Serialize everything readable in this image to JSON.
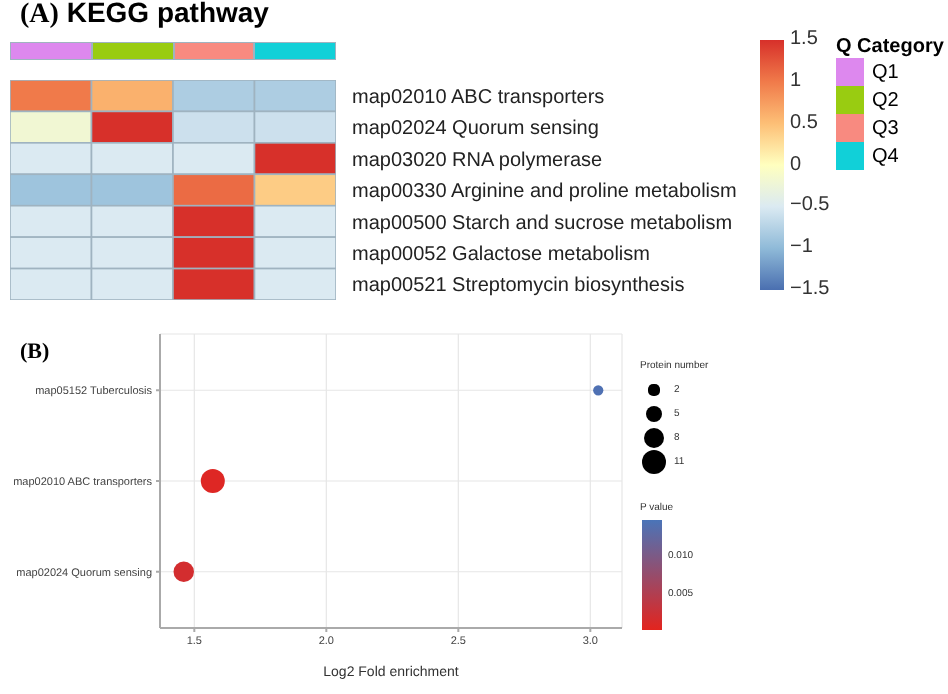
{
  "chart_data": [
    {
      "type": "heatmap",
      "title": "KEGG pathway",
      "annotations": [
        "(A)",
        "Q1",
        "Q2",
        "Q3",
        "Q4"
      ],
      "categories": [
        null,
        null,
        null,
        null
      ],
      "legend_title": "Q Category",
      "colors": [
        "#dd88ee",
        "#99cc11",
        "#f88a80",
        "#11d0d8"
      ],
      "y_categories": [
        "map02010 ABC transporters",
        "map02024 Quorum sensing",
        "map03020 RNA polymerase",
        "map00330 Arginine and proline metabolism",
        "map00500 Starch and sucrose metabolism",
        "map00052 Galactose metabolism",
        "map00521 Streptomycin biosynthesis"
      ],
      "cells": [
        [
          1.0,
          0.6,
          -0.8,
          -0.8
        ],
        [
          -0.2,
          1.5,
          -0.6,
          -0.6
        ],
        [
          -0.5,
          -0.5,
          -0.5,
          1.5
        ],
        [
          -0.9,
          -0.9,
          1.1,
          0.4
        ],
        [
          -0.5,
          -0.5,
          1.5,
          -0.5
        ],
        [
          -0.5,
          -0.5,
          1.5,
          -0.5
        ],
        [
          -0.5,
          -0.5,
          1.5,
          -0.5
        ]
      ],
      "clim": [
        -1.5,
        1.5
      ],
      "cticks": [
        {
          "value": 1.5,
          "label": "1.5"
        },
        {
          "value": 1,
          "label": "1"
        },
        {
          "value": 0.5,
          "label": "0.5"
        },
        {
          "value": 0,
          "label": "0"
        },
        {
          "value": -0.5,
          "label": "−0.5"
        },
        {
          "value": -1,
          "label": "−1"
        },
        {
          "value": -1.5,
          "label": "−1.5"
        }
      ]
    },
    {
      "type": "bubble",
      "annotations": [
        "(B)"
      ],
      "orientation": "horizontal",
      "categories": [
        "map05152 Tuberculosis",
        "map02010 ABC transporters",
        "map02024 Quorum sensing"
      ],
      "values": [
        3.03,
        1.57,
        1.46
      ],
      "sizes": [
        2,
        11,
        8
      ],
      "size_legend": [
        2,
        5,
        8,
        11
      ],
      "legend_title": "Protein number",
      "cvalues": [
        0.014,
        0.001,
        0.002
      ],
      "clabel": "P value",
      "clim": [
        0.0005,
        0.0145
      ],
      "cticks": [
        {
          "value": 0.005,
          "label": "0.005"
        },
        {
          "value": 0.01,
          "label": "0.010"
        }
      ],
      "xlim": [
        1.37,
        3.12
      ],
      "xticks": [
        1.5,
        {
          "value": 2,
          "label": "2.0"
        },
        2.5,
        {
          "value": 3,
          "label": "3.0"
        }
      ],
      "xlabel": "Log2 Fold enrichment",
      "grid": true
    }
  ]
}
